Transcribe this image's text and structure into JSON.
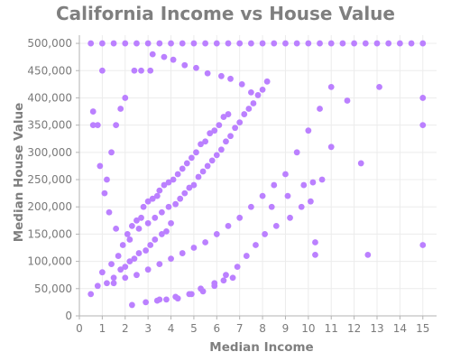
{
  "chart_data": {
    "type": "scatter",
    "title": "California Income vs House Value",
    "xlabel": "Median Income",
    "ylabel": "Median House Value",
    "xlim": [
      0,
      15.6
    ],
    "ylim": [
      0,
      515000
    ],
    "x_ticks": [
      0,
      1,
      2,
      3,
      4,
      5,
      6,
      7,
      8,
      9,
      10,
      11,
      12,
      13,
      14,
      15
    ],
    "x_tick_labels": [
      "0",
      "1",
      "2",
      "3",
      "4",
      "5",
      "6",
      "7",
      "8",
      "9",
      "10",
      "11",
      "12",
      "13",
      "14",
      "15"
    ],
    "y_ticks": [
      0,
      50000,
      100000,
      150000,
      200000,
      250000,
      300000,
      350000,
      400000,
      450000,
      500000
    ],
    "y_tick_labels": [
      "0",
      "50,000",
      "100,000",
      "150,000",
      "200,000",
      "250,000",
      "300,000",
      "350,000",
      "400,000",
      "450,000",
      "500,000"
    ],
    "grid": true,
    "legend": "none",
    "marker_color": "#bb80ff",
    "series": [
      {
        "x": [
          0.5,
          0.8,
          1.2,
          1.5,
          1.8,
          2.0,
          2.2,
          2.4,
          2.6,
          2.9,
          3.1,
          3.3,
          3.6,
          3.8,
          4.0,
          0.6,
          0.9,
          1.1,
          1.3,
          1.6,
          1.9,
          2.1,
          2.3,
          2.5,
          2.7,
          2.8,
          3.0,
          3.2,
          3.4,
          3.5,
          3.7,
          3.9,
          4.1,
          4.3,
          4.5,
          4.7,
          4.9,
          5.1,
          5.3,
          5.5,
          5.7,
          5.9,
          6.1,
          6.3,
          6.5,
          1.0,
          1.4,
          1.7,
          2.2,
          2.6,
          3.0,
          3.3,
          3.6,
          3.9,
          4.2,
          4.4,
          4.6,
          4.8,
          5.0,
          5.2,
          5.4,
          5.6,
          5.8,
          6.0,
          6.2,
          6.4,
          6.6,
          6.8,
          7.0,
          7.2,
          7.4,
          7.6,
          7.8,
          8.0,
          8.2,
          1.5,
          2.0,
          2.5,
          3.0,
          3.5,
          4.0,
          4.5,
          5.0,
          5.5,
          6.0,
          6.5,
          7.0,
          7.5,
          8.0,
          8.5,
          9.0,
          9.5,
          10.0,
          10.5,
          11.0,
          0.5,
          1.0,
          1.5,
          2.0,
          2.5,
          3.0,
          3.5,
          4.0,
          4.5,
          5.0,
          5.5,
          6.0,
          6.5,
          7.0,
          7.5,
          8.0,
          8.5,
          9.0,
          9.5,
          10.0,
          10.5,
          11.0,
          11.5,
          12.0,
          12.5,
          13.0,
          13.5,
          14.0,
          14.5,
          15.0,
          15.0,
          15.0,
          15.0,
          12.6,
          12.3,
          10.3,
          10.3,
          10.2,
          11.0,
          9.8,
          11.7,
          13.1,
          10.6,
          8.4,
          9.1,
          3.1,
          2.7,
          2.4,
          2.0,
          1.8,
          1.6,
          1.4,
          1.2,
          1.0,
          0.8,
          0.6,
          3.5,
          4.2,
          4.8,
          5.3,
          5.9,
          6.4,
          6.9,
          7.3,
          7.7,
          8.1,
          8.6,
          9.2,
          9.7,
          10.1,
          2.3,
          2.9,
          3.4,
          3.8,
          4.3,
          4.9,
          5.4,
          5.9,
          6.3,
          6.7,
          3.2,
          3.7,
          4.1,
          4.6,
          5.1,
          5.6,
          6.2,
          6.6,
          7.1,
          7.5
        ],
        "y": [
          40000,
          55000,
          60000,
          70000,
          85000,
          90000,
          100000,
          105000,
          115000,
          120000,
          130000,
          140000,
          150000,
          155000,
          170000,
          350000,
          275000,
          225000,
          190000,
          160000,
          130000,
          150000,
          165000,
          175000,
          180000,
          200000,
          210000,
          215000,
          220000,
          230000,
          240000,
          245000,
          250000,
          260000,
          270000,
          280000,
          290000,
          300000,
          315000,
          320000,
          335000,
          340000,
          350000,
          365000,
          370000,
          80000,
          95000,
          110000,
          140000,
          160000,
          170000,
          180000,
          190000,
          200000,
          205000,
          215000,
          225000,
          235000,
          240000,
          255000,
          265000,
          275000,
          285000,
          295000,
          305000,
          320000,
          330000,
          345000,
          355000,
          370000,
          380000,
          390000,
          405000,
          415000,
          430000,
          60000,
          70000,
          75000,
          85000,
          95000,
          105000,
          115000,
          125000,
          135000,
          150000,
          165000,
          180000,
          200000,
          220000,
          240000,
          260000,
          300000,
          340000,
          380000,
          420000,
          500000,
          500000,
          500000,
          500000,
          500000,
          500000,
          500000,
          500000,
          500000,
          500000,
          500000,
          500000,
          500000,
          500000,
          500000,
          500000,
          500000,
          500000,
          500000,
          500000,
          500000,
          500000,
          500000,
          500000,
          500000,
          500000,
          500000,
          500000,
          500000,
          500000,
          400000,
          350000,
          130000,
          112000,
          280000,
          112000,
          135000,
          245000,
          310000,
          240000,
          395000,
          420000,
          250000,
          200000,
          220000,
          450000,
          450000,
          450000,
          400000,
          380000,
          350000,
          300000,
          250000,
          450000,
          350000,
          375000,
          30000,
          35000,
          40000,
          50000,
          60000,
          75000,
          90000,
          110000,
          130000,
          150000,
          165000,
          180000,
          200000,
          210000,
          20000,
          25000,
          28000,
          30000,
          32000,
          40000,
          45000,
          55000,
          65000,
          70000,
          480000,
          475000,
          470000,
          460000,
          455000,
          445000,
          440000,
          435000,
          425000,
          410000
        ]
      }
    ]
  }
}
